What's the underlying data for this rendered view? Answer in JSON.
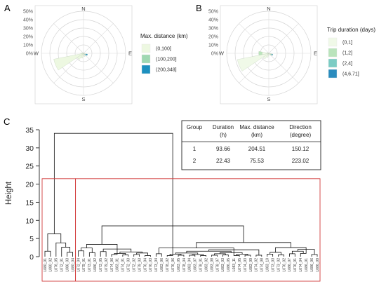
{
  "panels": {
    "A": {
      "letter": "A"
    },
    "B": {
      "letter": "B"
    },
    "C": {
      "letter": "C"
    }
  },
  "chart_data": [
    {
      "type": "rose",
      "panel": "A",
      "compass": [
        "N",
        "E",
        "S",
        "W"
      ],
      "radial_ticks": [
        "0%",
        "10%",
        "20%",
        "30%",
        "40%",
        "50%"
      ],
      "radial_values": [
        0,
        10,
        20,
        30,
        40,
        50
      ],
      "rmax": 50,
      "legend_title": "Max. distance (km)",
      "legend_placement": "right",
      "series": [
        {
          "name": "(0,100]",
          "color": "#edf8e1"
        },
        {
          "name": "(100,200]",
          "color": "#9fd8b2"
        },
        {
          "name": "(200,348]",
          "color": "#1d90bf"
        }
      ],
      "sectors": [
        {
          "direction": 112.5,
          "stack": [
            3,
            0,
            2
          ]
        },
        {
          "direction": 135,
          "stack": [
            2,
            0,
            1
          ]
        },
        {
          "direction": 157.5,
          "stack": [
            4,
            0,
            0
          ]
        },
        {
          "direction": 202.5,
          "stack": [
            6,
            0,
            0
          ]
        },
        {
          "direction": 225,
          "stack": [
            9,
            0,
            0
          ]
        },
        {
          "direction": 247.5,
          "stack": [
            36,
            0,
            0
          ]
        },
        {
          "direction": 270,
          "stack": [
            3,
            0,
            0
          ]
        },
        {
          "direction": 292.5,
          "stack": [
            1,
            0,
            0
          ]
        }
      ]
    },
    {
      "type": "rose",
      "panel": "B",
      "compass": [
        "N",
        "E",
        "S",
        "W"
      ],
      "radial_ticks": [
        "0%",
        "10%",
        "20%",
        "30%",
        "40%",
        "50%"
      ],
      "radial_values": [
        0,
        10,
        20,
        30,
        40,
        50
      ],
      "rmax": 50,
      "legend_title": "Trip duration (days)",
      "legend_placement": "right",
      "series": [
        {
          "name": "(0,1]",
          "color": "#f0f9e8"
        },
        {
          "name": "(1,2]",
          "color": "#bae4bc"
        },
        {
          "name": "(2,4]",
          "color": "#7bccc4"
        },
        {
          "name": "(4,6.71]",
          "color": "#2b8cbe"
        }
      ],
      "sectors": [
        {
          "direction": 112.5,
          "stack": [
            2,
            1,
            1,
            1
          ]
        },
        {
          "direction": 135,
          "stack": [
            2,
            1,
            0,
            0
          ]
        },
        {
          "direction": 202.5,
          "stack": [
            5,
            0,
            0,
            0
          ]
        },
        {
          "direction": 225,
          "stack": [
            8,
            0,
            0,
            0
          ]
        },
        {
          "direction": 247.5,
          "stack": [
            38,
            0,
            0,
            0
          ]
        },
        {
          "direction": 270,
          "stack": [
            8,
            4,
            0,
            0
          ]
        },
        {
          "direction": 292.5,
          "stack": [
            2,
            0,
            0,
            0
          ]
        }
      ]
    },
    {
      "type": "dendrogram",
      "panel": "C",
      "ylabel": "Height",
      "yticks": [
        0,
        5,
        10,
        15,
        20,
        25,
        30,
        35
      ],
      "ylim": [
        0,
        35
      ],
      "leaves": [
        "L080_01",
        "L080_02",
        "L076_05",
        "L072_01",
        "L086_03",
        "L080_04",
        "L072_04",
        "L079_01",
        "L073_01",
        "L086_02",
        "L073_05",
        "L079_02",
        "L074_06",
        "L083_01",
        "L074_01",
        "L072_03",
        "L072_02",
        "L079_03",
        "L076_04",
        "L076_03",
        "L073_04",
        "L083_06",
        "L078_02",
        "L076_06",
        "L083_05",
        "L078_04",
        "L083_04",
        "L083_07",
        "L078_01",
        "L083_02",
        "L083_08",
        "L078_07",
        "L083_03",
        "L086_05",
        "L083_11",
        "L074_05",
        "L074_03",
        "L083_09",
        "L074_02",
        "L074_08",
        "L083_10",
        "L073_03",
        "L073_02",
        "L076_02",
        "L086_07",
        "L076_01",
        "L074_04",
        "L086_01",
        "L086_06",
        "L086_09"
      ],
      "merges": [
        {
          "left": 0,
          "right": 1,
          "height": 1.5
        },
        {
          "left": 4,
          "right": 5,
          "height": 1.2
        },
        {
          "left": 3,
          "right": 4.5,
          "height": 2.6
        },
        {
          "left": 2,
          "right": 3.75,
          "height": 3.8
        },
        {
          "left": 0.5,
          "right": 2.875,
          "height": 6.3
        },
        {
          "left": 6,
          "right": 7,
          "height": 1.6
        },
        {
          "left": 8,
          "right": 9,
          "height": 1.1
        },
        {
          "left": 6.5,
          "right": 8.5,
          "height": 2.4
        },
        {
          "left": 10,
          "right": 11,
          "height": 1.4
        },
        {
          "left": 12,
          "right": 13,
          "height": 0.6
        },
        {
          "left": 14,
          "right": 15,
          "height": 0.5
        },
        {
          "left": 16,
          "right": 17,
          "height": 0.6
        },
        {
          "left": 18,
          "right": 19,
          "height": 0.3
        },
        {
          "left": 12.5,
          "right": 14.5,
          "height": 0.9
        },
        {
          "left": 16.5,
          "right": 18.5,
          "height": 1.0
        },
        {
          "left": 13.5,
          "right": 17.5,
          "height": 1.3
        },
        {
          "left": 10.5,
          "right": 15.5,
          "height": 2.1
        },
        {
          "left": 7.5,
          "right": 13.0,
          "height": 3.4
        },
        {
          "left": 20,
          "right": 21,
          "height": 0.8
        },
        {
          "left": 22,
          "right": 23,
          "height": 0.3
        },
        {
          "left": 24,
          "right": 25,
          "height": 0.4
        },
        {
          "left": 26,
          "right": 27,
          "height": 0.4
        },
        {
          "left": 28,
          "right": 29,
          "height": 0.3
        },
        {
          "left": 30,
          "right": 31,
          "height": 0.4
        },
        {
          "left": 32,
          "right": 33,
          "height": 0.5
        },
        {
          "left": 34,
          "right": 35,
          "height": 0.3
        },
        {
          "left": 36,
          "right": 37,
          "height": 0.4
        },
        {
          "left": 38,
          "right": 39,
          "height": 0.4
        },
        {
          "left": 22.5,
          "right": 24.5,
          "height": 0.7
        },
        {
          "left": 26.5,
          "right": 28.5,
          "height": 0.6
        },
        {
          "left": 30.5,
          "right": 32.5,
          "height": 0.8
        },
        {
          "left": 34.5,
          "right": 36.5,
          "height": 0.7
        },
        {
          "left": 23.5,
          "right": 27.5,
          "height": 1.0
        },
        {
          "left": 31.5,
          "right": 35.5,
          "height": 1.1
        },
        {
          "left": 25.5,
          "right": 33.5,
          "height": 1.5
        },
        {
          "left": 29.5,
          "right": 38.5,
          "height": 1.9
        },
        {
          "left": 20.5,
          "right": 34.0,
          "height": 2.4
        },
        {
          "left": 40,
          "right": 41,
          "height": 0.7
        },
        {
          "left": 42,
          "right": 43,
          "height": 0.5
        },
        {
          "left": 44,
          "right": 45,
          "height": 0.8
        },
        {
          "left": 46,
          "right": 47,
          "height": 0.9
        },
        {
          "left": 48,
          "right": 49,
          "height": 0.6
        },
        {
          "left": 40.5,
          "right": 42.5,
          "height": 1.2
        },
        {
          "left": 44.5,
          "right": 46.5,
          "height": 1.5
        },
        {
          "left": 45.5,
          "right": 48.5,
          "height": 2.0
        },
        {
          "left": 41.5,
          "right": 47.0,
          "height": 2.5
        },
        {
          "left": 27.25,
          "right": 44.25,
          "height": 3.9
        },
        {
          "left": 10.25,
          "right": 35.75,
          "height": 8.5
        },
        {
          "left": 1.6875,
          "right": 23.0,
          "height": 34.0
        }
      ],
      "group_boxes": [
        {
          "from_leaf": 0,
          "to_leaf": 5,
          "ymax": 21.5
        },
        {
          "from_leaf": 6,
          "to_leaf": 49,
          "ymax": 21.5
        }
      ],
      "table": {
        "headers": [
          [
            "Group",
            ""
          ],
          [
            "Duration",
            "(h)"
          ],
          [
            "Max. distance",
            "(km)"
          ],
          [
            "Direction",
            "(degree)"
          ]
        ],
        "rows": [
          [
            "1",
            "93.66",
            "204.51",
            "150.12"
          ],
          [
            "2",
            "22.43",
            "75.53",
            "223.02"
          ]
        ]
      }
    }
  ]
}
